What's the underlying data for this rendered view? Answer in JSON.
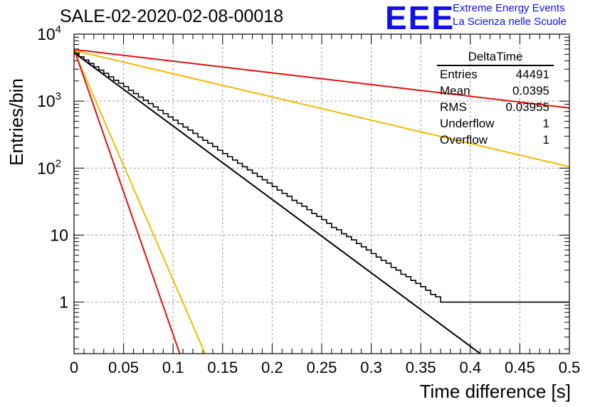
{
  "title": "SALE-02-2020-02-08-00018",
  "logo": {
    "mark": "EEE",
    "line1": "Extreme Energy Events",
    "line2": "La Scienza nelle Scuole"
  },
  "stats": {
    "title": "DeltaTime",
    "rows": [
      {
        "key": "Entries",
        "value": "44491"
      },
      {
        "key": "Mean",
        "value": "0.0395"
      },
      {
        "key": "RMS",
        "value": "0.03955"
      },
      {
        "key": "Underflow",
        "value": "1"
      },
      {
        "key": "Overflow",
        "value": "1"
      }
    ]
  },
  "colors": {
    "histogram": "#000000",
    "fit": "#000000",
    "red": "#e01010",
    "orange": "#f5b800",
    "logo": "#1010ee",
    "grid": "#999999"
  },
  "chart_data": {
    "type": "line",
    "xlabel": "Time difference [s]",
    "ylabel": "Entries/bin",
    "xlim": [
      0,
      0.5
    ],
    "ylim": [
      0.17,
      10000
    ],
    "yscale": "log",
    "grid": true,
    "x_ticks": [
      "0",
      "0.05",
      "0.1",
      "0.15",
      "0.2",
      "0.25",
      "0.3",
      "0.35",
      "0.4",
      "0.45",
      "0.5"
    ],
    "y_ticks": [
      {
        "value": 1,
        "label": "1"
      },
      {
        "value": 10,
        "label": "10"
      },
      {
        "value": 100,
        "label": "10^2"
      },
      {
        "value": 1000,
        "label": "10^3"
      },
      {
        "value": 10000,
        "label": "10^4"
      }
    ],
    "histogram": {
      "bin_width": 0.005,
      "counts": [
        5200,
        4600,
        4100,
        3650,
        3250,
        2900,
        2600,
        2300,
        2050,
        1850,
        1650,
        1450,
        1300,
        1150,
        1030,
        920,
        820,
        730,
        650,
        580,
        520,
        460,
        410,
        370,
        330,
        290,
        260,
        235,
        210,
        185,
        165,
        148,
        132,
        118,
        105,
        94,
        84,
        75,
        67,
        60,
        53,
        47,
        42,
        38,
        33,
        30,
        27,
        24,
        21,
        19,
        17,
        15,
        13,
        12,
        10.5,
        9.5,
        8.5,
        7.5,
        6.7,
        6,
        5.3,
        4.7,
        4.2,
        3.8,
        3.3,
        3,
        2.6,
        2.4,
        2.1,
        1.9,
        1.7,
        1.5,
        1.3,
        1.2,
        1,
        1,
        1,
        1,
        1,
        1,
        1,
        1,
        1,
        1,
        1,
        1,
        1,
        1,
        1,
        1,
        1,
        1,
        1,
        1,
        1,
        1,
        1,
        1,
        1,
        1
      ]
    },
    "series": [
      {
        "color": "#000000",
        "x": [
          0,
          0.415
        ],
        "y": [
          5300,
          0.15
        ]
      },
      {
        "color": "#e01010",
        "x": [
          0,
          0.5
        ],
        "y": [
          5900,
          790
        ]
      },
      {
        "color": "#f5b800",
        "x": [
          0,
          0.5
        ],
        "y": [
          5700,
          105
        ]
      },
      {
        "color": "#f5b800",
        "x": [
          0,
          0.133
        ],
        "y": [
          5600,
          0.16
        ]
      },
      {
        "color": "#e01010",
        "x": [
          0,
          0.108
        ],
        "y": [
          6000,
          0.15
        ]
      }
    ]
  }
}
